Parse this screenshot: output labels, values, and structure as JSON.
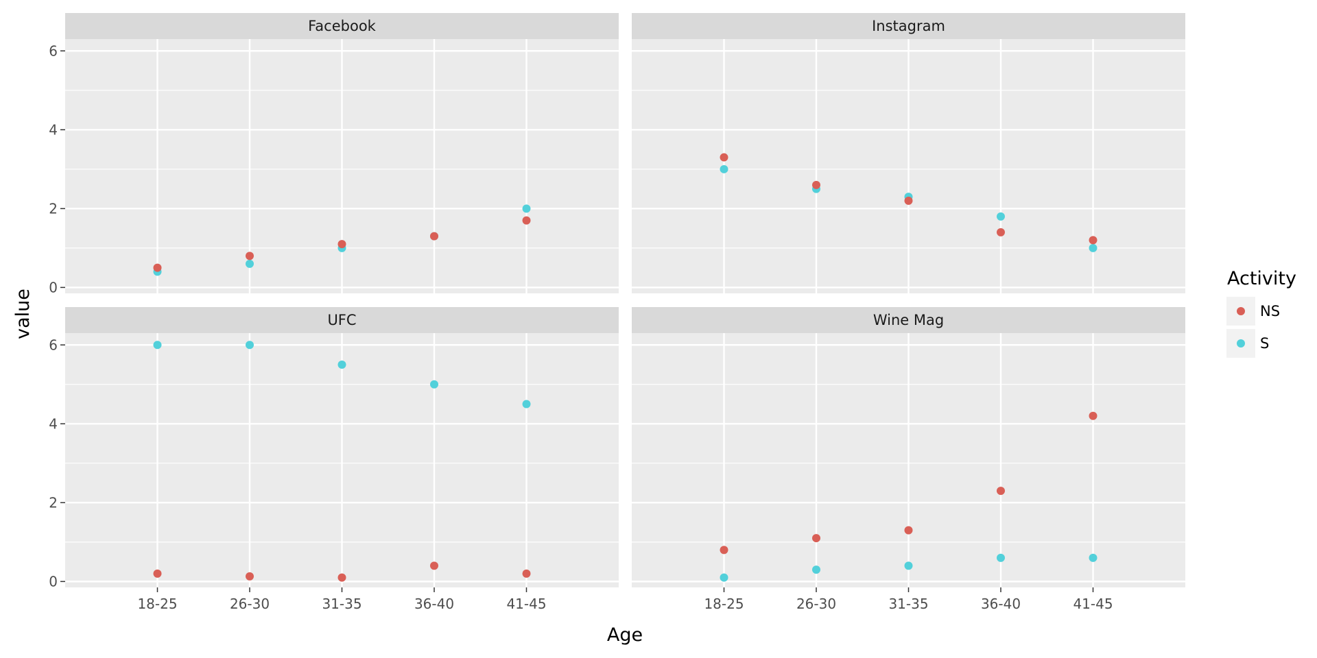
{
  "chart_data": {
    "type": "scatter",
    "xlabel": "Age",
    "ylabel": "value",
    "categories": [
      "18-25",
      "26-30",
      "31-35",
      "36-40",
      "41-45"
    ],
    "ylim": [
      -0.15,
      6.3
    ],
    "yticks": [
      0,
      2,
      4,
      6
    ],
    "ytick_labels": [
      "0",
      "2",
      "4",
      "6"
    ],
    "grid": true,
    "legend": {
      "title": "Activity",
      "position": "right",
      "entries": [
        {
          "name": "NS",
          "color": "#d95f56"
        },
        {
          "name": "S",
          "color": "#52d0da"
        }
      ]
    },
    "panels": [
      {
        "title": "Facebook",
        "series": [
          {
            "name": "NS",
            "values": [
              0.5,
              0.8,
              1.1,
              1.3,
              1.7
            ]
          },
          {
            "name": "S",
            "values": [
              0.4,
              0.6,
              1.0,
              1.3,
              2.0
            ]
          }
        ]
      },
      {
        "title": "Instagram",
        "series": [
          {
            "name": "NS",
            "values": [
              3.3,
              2.6,
              2.2,
              1.4,
              1.2
            ]
          },
          {
            "name": "S",
            "values": [
              3.0,
              2.5,
              2.3,
              1.8,
              1.0
            ]
          }
        ]
      },
      {
        "title": "UFC",
        "series": [
          {
            "name": "NS",
            "values": [
              0.2,
              0.13,
              0.1,
              0.4,
              0.2
            ]
          },
          {
            "name": "S",
            "values": [
              6.0,
              6.0,
              5.5,
              5.0,
              4.5
            ]
          }
        ]
      },
      {
        "title": "Wine Mag",
        "series": [
          {
            "name": "NS",
            "values": [
              0.8,
              1.1,
              1.3,
              2.3,
              4.2
            ]
          },
          {
            "name": "S",
            "values": [
              0.1,
              0.3,
              0.4,
              0.6,
              0.6
            ]
          }
        ]
      }
    ]
  }
}
